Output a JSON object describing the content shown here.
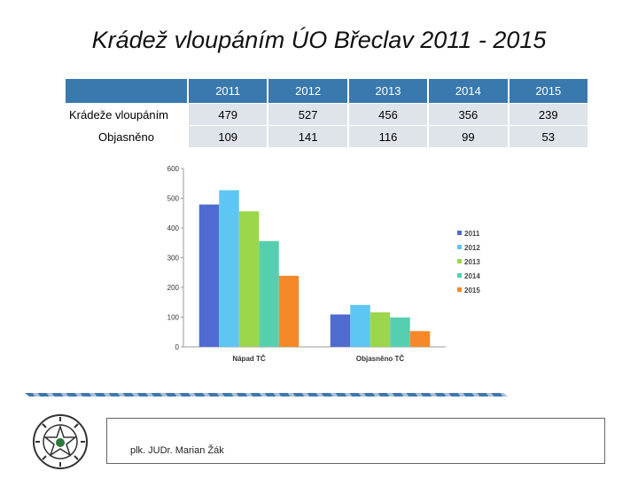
{
  "slide": {
    "title": "Krádež vloupáním ÚO Břeclav 2011 - 2015"
  },
  "table": {
    "header": [
      "",
      "2011",
      "2012",
      "2013",
      "2014",
      "2015"
    ],
    "rows": [
      {
        "label": "Krádeže vloupáním",
        "values": [
          "479",
          "527",
          "456",
          "356",
          "239"
        ]
      },
      {
        "label": "Objasněno",
        "values": [
          "109",
          "141",
          "116",
          "99",
          "53"
        ]
      }
    ]
  },
  "chart_data": {
    "type": "bar",
    "categories": [
      "Nápad TČ",
      "Objasněno TČ"
    ],
    "series": [
      {
        "name": "2011",
        "values": [
          479,
          109
        ],
        "color": "#4f6bd0"
      },
      {
        "name": "2012",
        "values": [
          527,
          141
        ],
        "color": "#5ec6f2"
      },
      {
        "name": "2013",
        "values": [
          456,
          116
        ],
        "color": "#9cd64a"
      },
      {
        "name": "2014",
        "values": [
          356,
          99
        ],
        "color": "#56cfb0"
      },
      {
        "name": "2015",
        "values": [
          239,
          53
        ],
        "color": "#f5892a"
      }
    ],
    "ylim": [
      0,
      600
    ],
    "yticks": [
      "0",
      "100",
      "200",
      "300",
      "400",
      "500",
      "600"
    ],
    "legend_position": "right",
    "grid": false
  },
  "footer": {
    "author": "plk. JUDr. Marian Žák"
  },
  "colors": {
    "table_header": "#3a79ad",
    "table_cell": "#dfe4ea",
    "ribbon": "#1f5fa0"
  },
  "icons": {
    "logo": "police-badge-icon"
  }
}
